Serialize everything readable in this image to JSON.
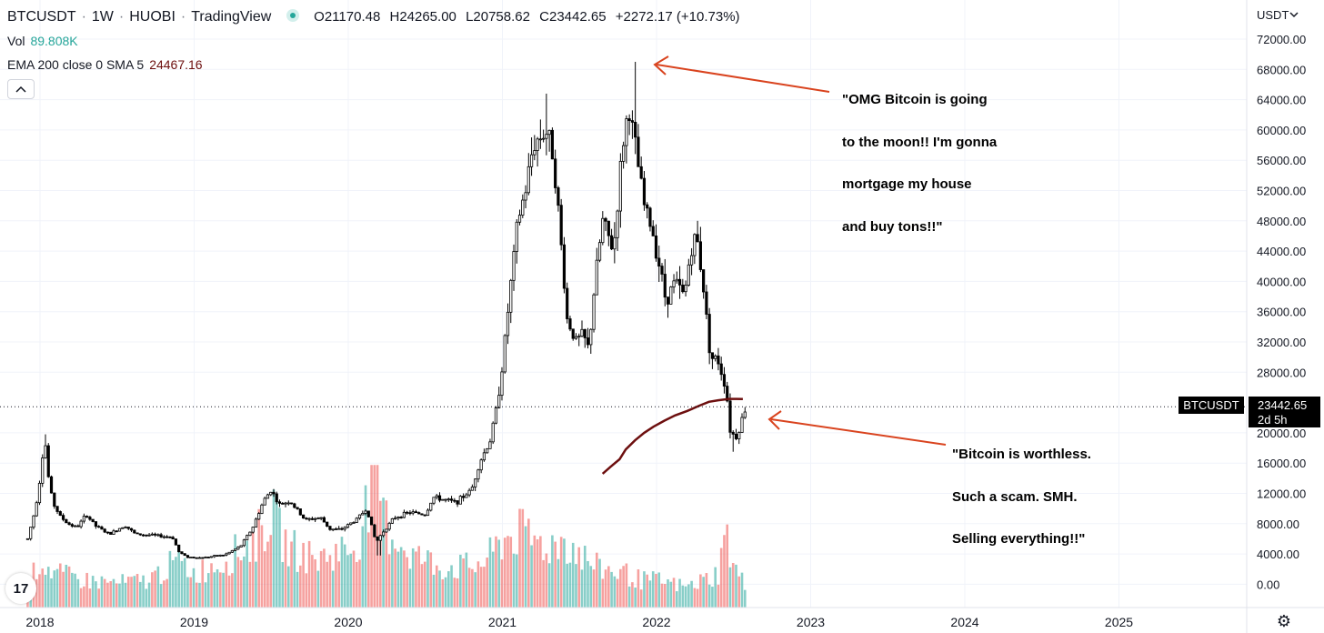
{
  "header": {
    "symbol": "BTCUSDT",
    "sep": "·",
    "interval": "1W",
    "exchange": "HUOBI",
    "platform": "TradingView",
    "status_color": "#26a69a",
    "ohlc": {
      "o_label": "O",
      "o": "21170.48",
      "h_label": "H",
      "h": "24265.00",
      "l_label": "L",
      "l": "20758.62",
      "c_label": "C",
      "c": "23442.65",
      "change": "+2272.17 (+10.73%)"
    }
  },
  "vol_legend": {
    "label": "Vol",
    "value": "89.808K"
  },
  "ema_legend": {
    "label": "EMA 200 close 0 SMA 5",
    "value": "24467.16"
  },
  "collapse_icon": "chevron-up-icon",
  "currency_label": "USDT",
  "currency_dropdown_icon": "chevron-down-icon",
  "price_tag": {
    "symbol": "BTCUSDT",
    "price": "23442.65",
    "countdown": "2d 5h"
  },
  "logo_text": "17",
  "settings_icon": "gear-icon",
  "annotations": [
    {
      "lines": [
        "\"OMG Bitcoin is going",
        "to the moon!! I'm gonna",
        "mortgage my house",
        "and buy tons!!\""
      ]
    },
    {
      "lines": [
        "\"Bitcoin is worthless.",
        "Such a scam. SMH.",
        "Selling everything!!\""
      ]
    }
  ],
  "colors": {
    "up": "#26a69a",
    "down": "#ef5350",
    "candle": "#000000",
    "ema": "#6d0f0f",
    "arrow": "#d9431e",
    "text": "#131722"
  },
  "chart_data": {
    "type": "candlestick",
    "y_ticks": [
      "72000.00",
      "68000.00",
      "64000.00",
      "60000.00",
      "56000.00",
      "52000.00",
      "48000.00",
      "44000.00",
      "40000.00",
      "36000.00",
      "32000.00",
      "28000.00",
      "20000.00",
      "16000.00",
      "12000.00",
      "8000.00",
      "4000.00",
      "0.00"
    ],
    "ylim": [
      -2000,
      75000
    ],
    "x_ticks": [
      "2018",
      "2019",
      "2020",
      "2021",
      "2022",
      "2023",
      "2024",
      "2025"
    ],
    "x_tick_values": [
      2018,
      2019,
      2020,
      2021,
      2022,
      2023,
      2024,
      2025
    ],
    "last_price": 23442.65,
    "price_path": [
      [
        2017.92,
        6000
      ],
      [
        2017.97,
        10000
      ],
      [
        2018.0,
        14000
      ],
      [
        2018.03,
        19500
      ],
      [
        2018.06,
        13000
      ],
      [
        2018.09,
        10500
      ],
      [
        2018.13,
        9000
      ],
      [
        2018.18,
        8000
      ],
      [
        2018.24,
        7500
      ],
      [
        2018.3,
        9200
      ],
      [
        2018.36,
        7700
      ],
      [
        2018.45,
        6600
      ],
      [
        2018.55,
        7800
      ],
      [
        2018.62,
        6600
      ],
      [
        2018.72,
        6500
      ],
      [
        2018.86,
        6200
      ],
      [
        2018.9,
        4300
      ],
      [
        2018.95,
        3600
      ],
      [
        2019.05,
        3500
      ],
      [
        2019.2,
        3900
      ],
      [
        2019.3,
        5000
      ],
      [
        2019.38,
        7500
      ],
      [
        2019.45,
        11000
      ],
      [
        2019.5,
        12500
      ],
      [
        2019.55,
        10500
      ],
      [
        2019.62,
        11000
      ],
      [
        2019.72,
        8500
      ],
      [
        2019.82,
        8800
      ],
      [
        2019.88,
        7300
      ],
      [
        2019.95,
        7200
      ],
      [
        2020.05,
        8500
      ],
      [
        2020.12,
        10000
      ],
      [
        2020.18,
        5500
      ],
      [
        2020.22,
        6800
      ],
      [
        2020.3,
        8800
      ],
      [
        2020.4,
        9500
      ],
      [
        2020.5,
        9200
      ],
      [
        2020.55,
        11500
      ],
      [
        2020.7,
        10800
      ],
      [
        2020.8,
        12500
      ],
      [
        2020.85,
        16000
      ],
      [
        2020.92,
        19000
      ],
      [
        2020.96,
        23000
      ],
      [
        2021.0,
        29000
      ],
      [
        2021.04,
        37000
      ],
      [
        2021.1,
        48000
      ],
      [
        2021.15,
        52000
      ],
      [
        2021.2,
        58000
      ],
      [
        2021.28,
        60000
      ],
      [
        2021.33,
        57000
      ],
      [
        2021.38,
        45000
      ],
      [
        2021.42,
        35000
      ],
      [
        2021.48,
        32000
      ],
      [
        2021.52,
        33000
      ],
      [
        2021.56,
        31000
      ],
      [
        2021.6,
        40000
      ],
      [
        2021.65,
        48000
      ],
      [
        2021.72,
        44000
      ],
      [
        2021.78,
        58000
      ],
      [
        2021.82,
        63000
      ],
      [
        2021.86,
        58000
      ],
      [
        2021.92,
        50000
      ],
      [
        2021.97,
        47000
      ],
      [
        2022.02,
        42000
      ],
      [
        2022.06,
        37500
      ],
      [
        2022.12,
        40000
      ],
      [
        2022.18,
        38000
      ],
      [
        2022.22,
        44000
      ],
      [
        2022.26,
        46000
      ],
      [
        2022.3,
        40000
      ],
      [
        2022.35,
        30000
      ],
      [
        2022.4,
        29500
      ],
      [
        2022.45,
        26000
      ],
      [
        2022.48,
        20000
      ],
      [
        2022.52,
        19500
      ],
      [
        2022.55,
        21500
      ],
      [
        2022.58,
        23442
      ]
    ],
    "high_wicks": [
      [
        2018.03,
        19800
      ],
      [
        2021.28,
        64800
      ],
      [
        2021.86,
        69000
      ],
      [
        2022.26,
        48000
      ]
    ],
    "low_wicks": [
      [
        2020.2,
        3800
      ],
      [
        2022.5,
        17500
      ]
    ],
    "ema_series": {
      "name": "EMA 200 close 0 SMA 5",
      "points": [
        [
          2021.65,
          14600
        ],
        [
          2021.7,
          15500
        ],
        [
          2021.76,
          16500
        ],
        [
          2021.8,
          17800
        ],
        [
          2021.86,
          19000
        ],
        [
          2021.92,
          20000
        ],
        [
          2021.98,
          20800
        ],
        [
          2022.05,
          21600
        ],
        [
          2022.12,
          22300
        ],
        [
          2022.2,
          22900
        ],
        [
          2022.28,
          23600
        ],
        [
          2022.34,
          24100
        ],
        [
          2022.4,
          24300
        ],
        [
          2022.47,
          24480
        ],
        [
          2022.52,
          24480
        ],
        [
          2022.56,
          24460
        ]
      ]
    },
    "volume_profile": [
      [
        2017.92,
        0.15
      ],
      [
        2018.0,
        0.35
      ],
      [
        2018.1,
        0.25
      ],
      [
        2018.3,
        0.2
      ],
      [
        2018.5,
        0.18
      ],
      [
        2018.7,
        0.2
      ],
      [
        2018.9,
        0.35
      ],
      [
        2019.0,
        0.25
      ],
      [
        2019.2,
        0.35
      ],
      [
        2019.4,
        0.5
      ],
      [
        2019.5,
        0.7
      ],
      [
        2019.6,
        0.45
      ],
      [
        2019.8,
        0.35
      ],
      [
        2019.9,
        0.4
      ],
      [
        2020.05,
        0.45
      ],
      [
        2020.18,
        1.0
      ],
      [
        2020.25,
        0.6
      ],
      [
        2020.4,
        0.4
      ],
      [
        2020.6,
        0.3
      ],
      [
        2020.8,
        0.3
      ],
      [
        2020.9,
        0.35
      ],
      [
        2021.0,
        0.5
      ],
      [
        2021.1,
        0.55
      ],
      [
        2021.3,
        0.45
      ],
      [
        2021.4,
        0.5
      ],
      [
        2021.6,
        0.3
      ],
      [
        2021.8,
        0.25
      ],
      [
        2021.9,
        0.2
      ],
      [
        2022.0,
        0.2
      ],
      [
        2022.2,
        0.15
      ],
      [
        2022.4,
        0.25
      ],
      [
        2022.45,
        0.55
      ],
      [
        2022.5,
        0.3
      ],
      [
        2022.58,
        0.15
      ]
    ],
    "volume_max_label": "89.808K"
  }
}
